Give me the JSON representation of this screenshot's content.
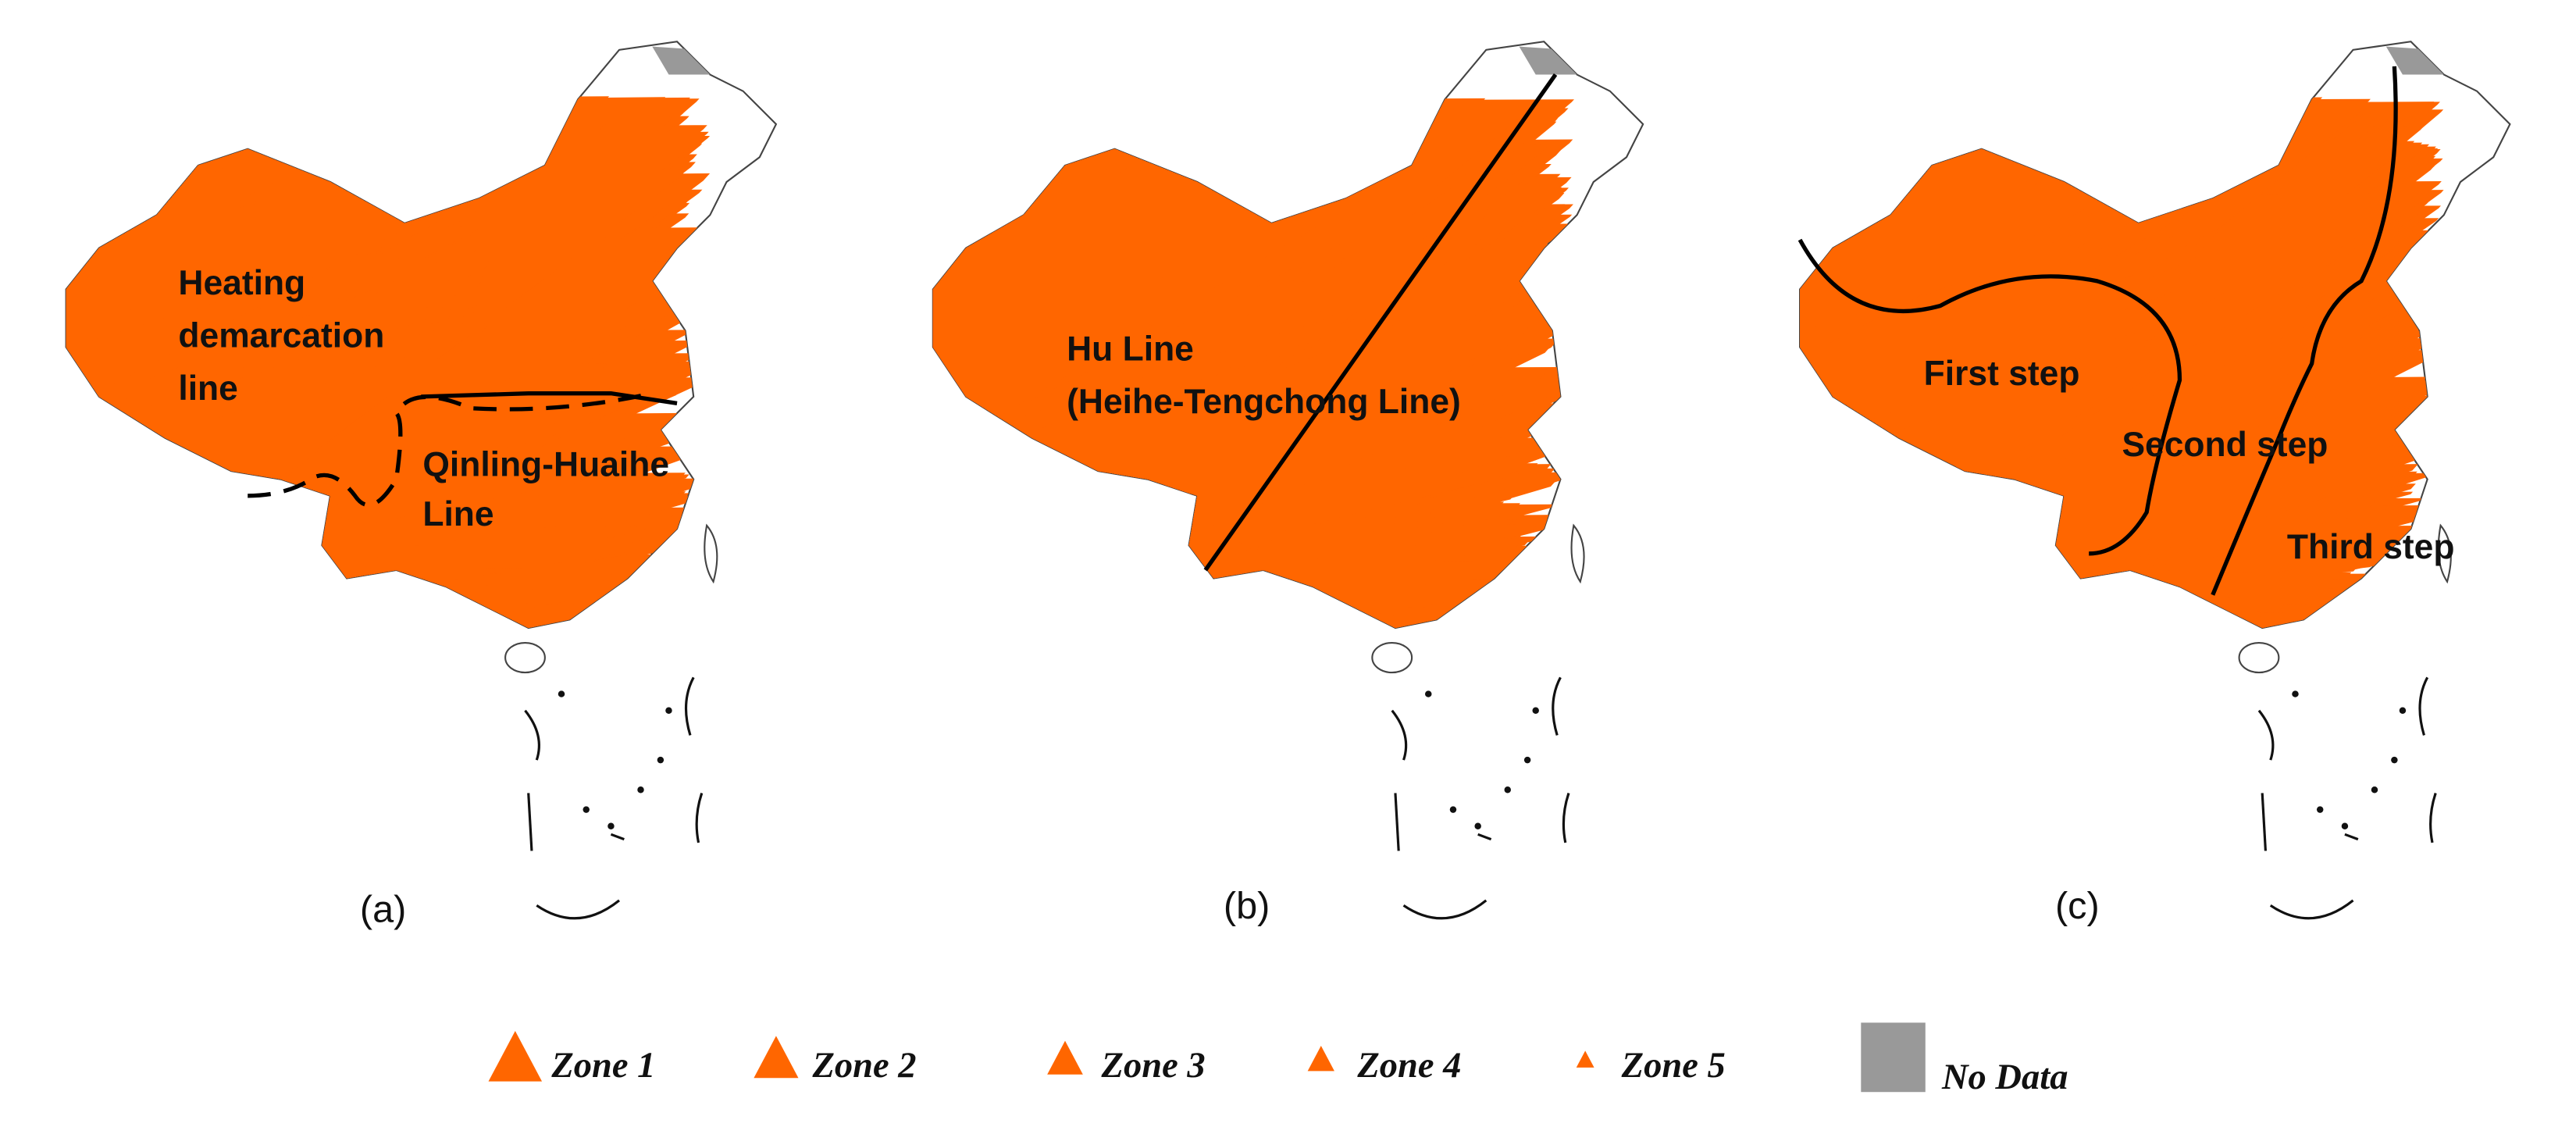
{
  "panels": [
    {
      "label": "(a)",
      "annotations": [
        "Heating",
        "demarcation",
        "line",
        "Qinling-Huaihe",
        "Line"
      ]
    },
    {
      "label": "(b)",
      "annotations": [
        "Hu Line",
        "(Heihe-Tengchong Line)"
      ]
    },
    {
      "label": "(c)",
      "annotations": [
        "First step",
        "Second step",
        "Third step"
      ]
    }
  ],
  "legend": [
    "Zone 1",
    "Zone 2",
    "Zone 3",
    "Zone 4",
    "Zone 5",
    "No Data"
  ]
}
